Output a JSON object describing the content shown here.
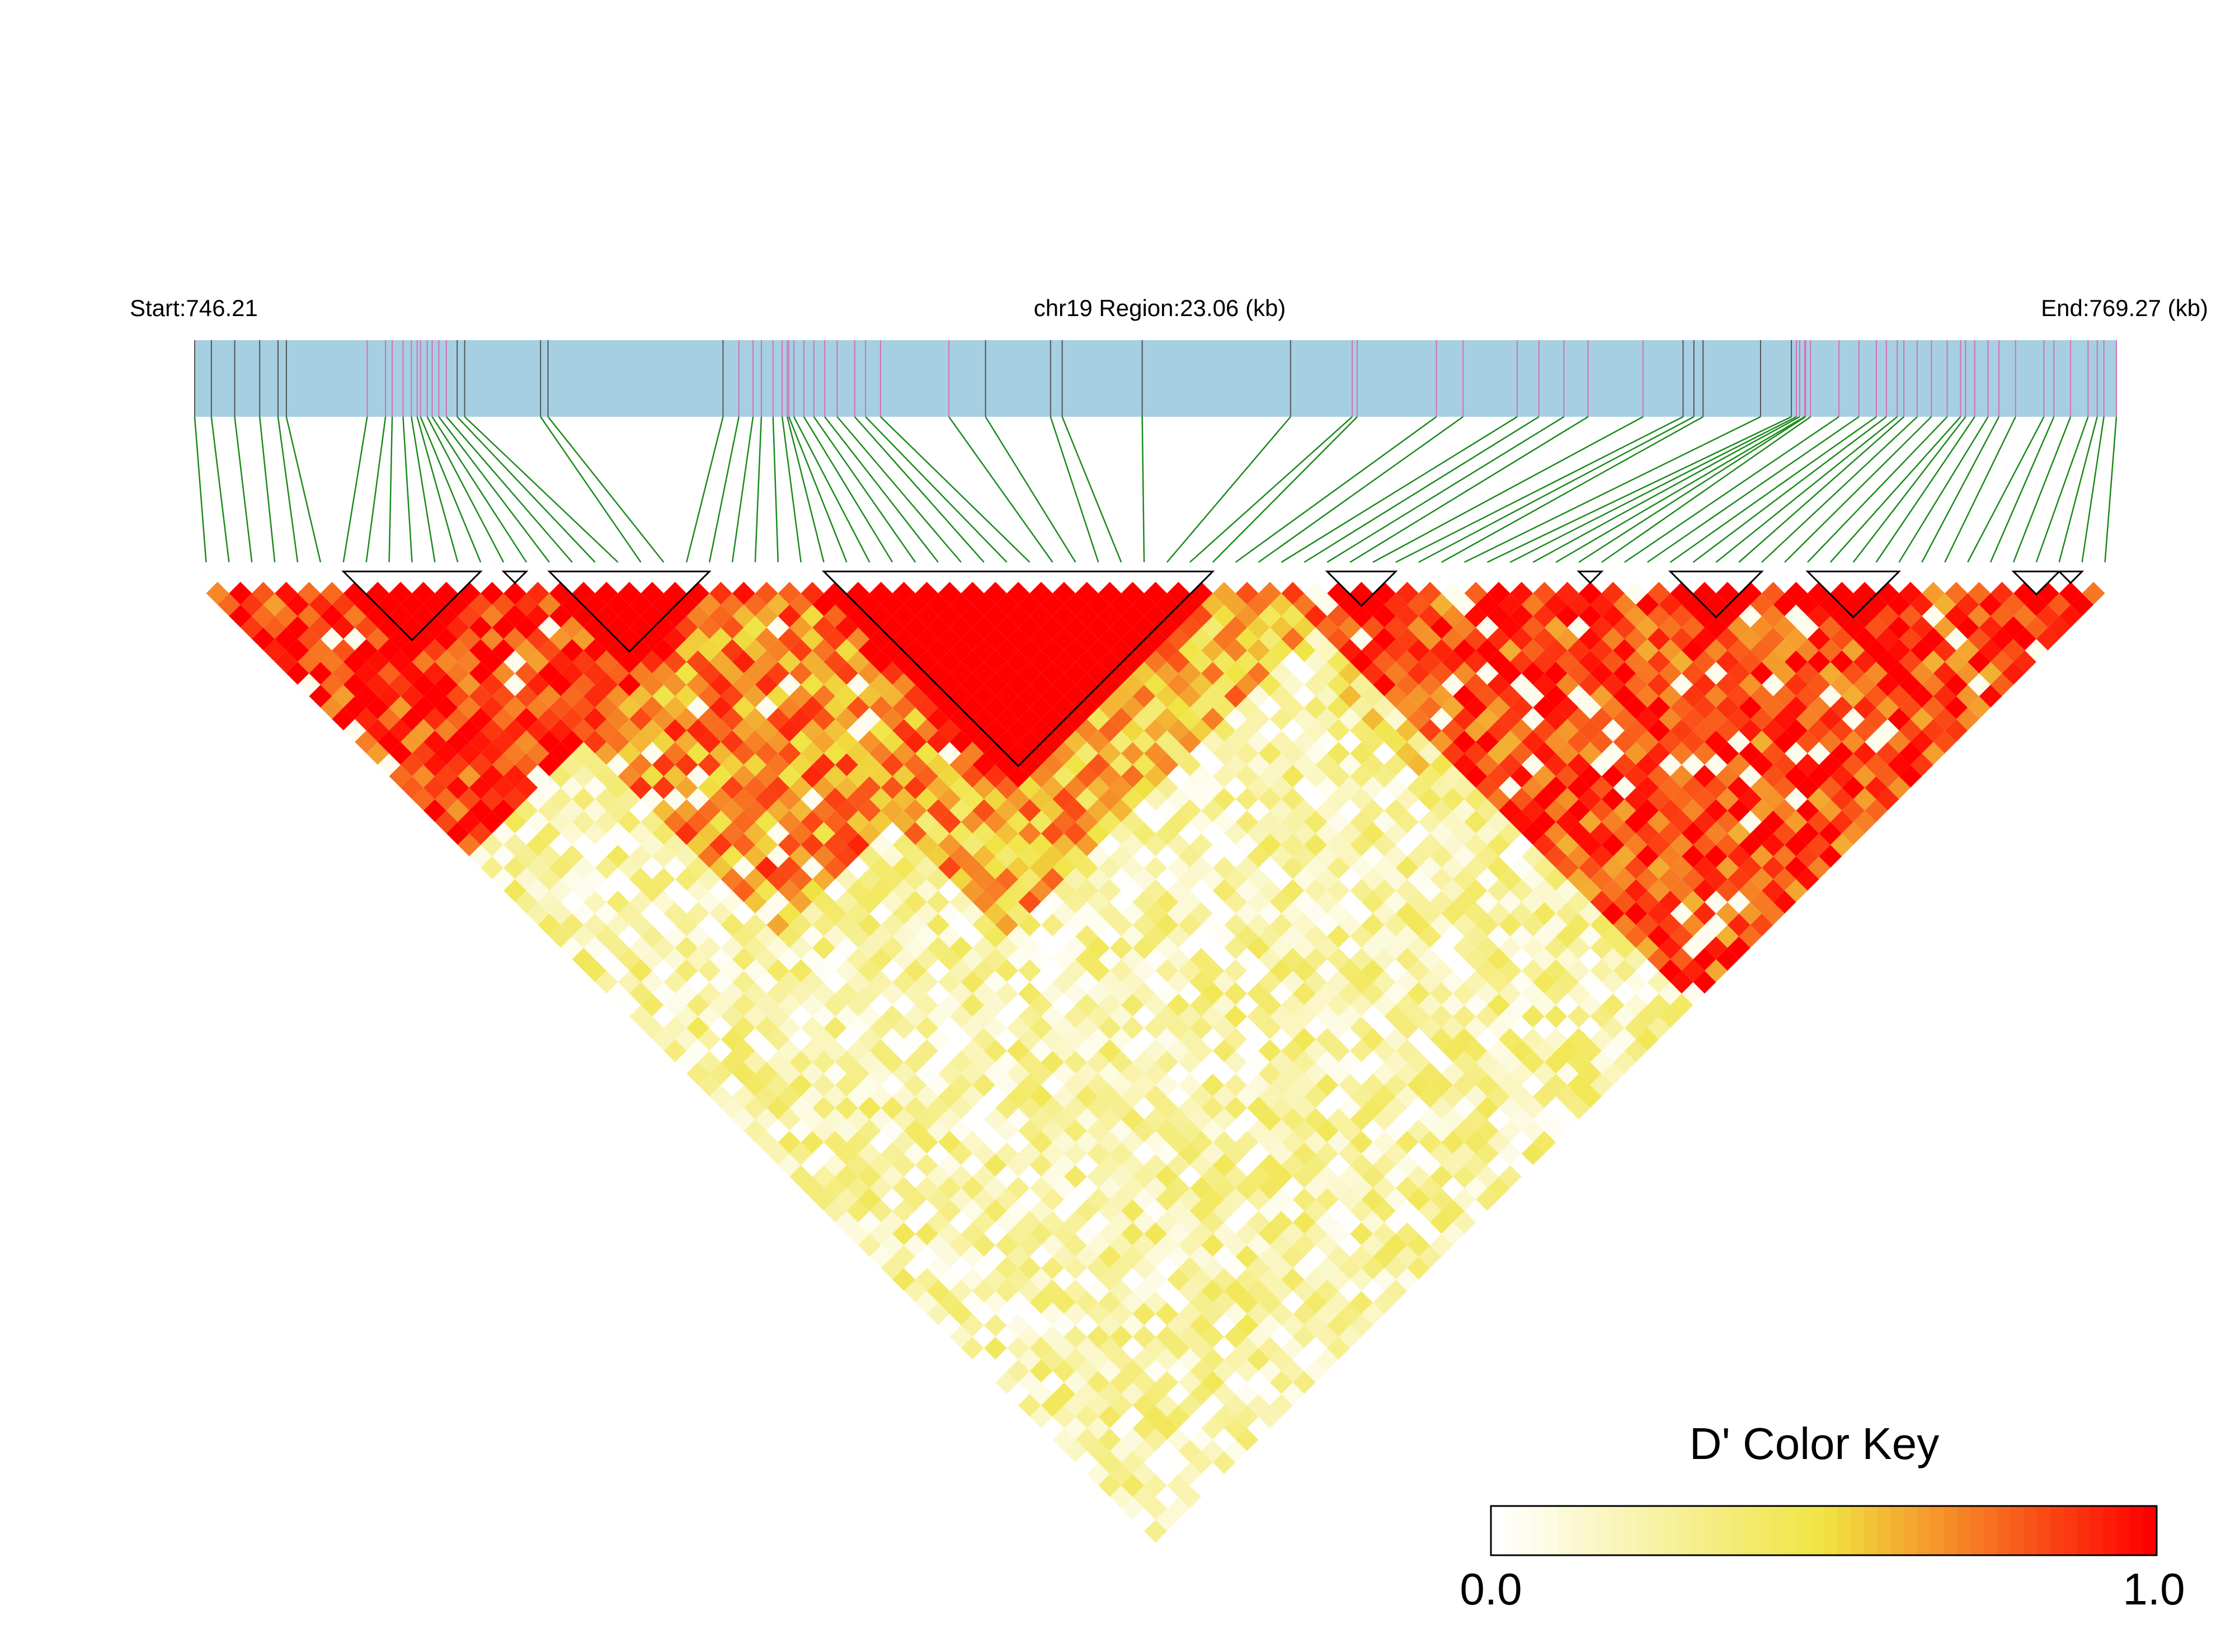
{
  "chart_data": {
    "type": "heatmap",
    "title": "",
    "header": {
      "start_label": "Start:746.21",
      "region_label": "chr19 Region:23.06 (kb)",
      "end_label": "End:769.27 (kb)"
    },
    "region": {
      "chromosome": "chr19",
      "start_kb": 746.21,
      "end_kb": 769.27,
      "length_kb": 23.06
    },
    "snp_count": 84,
    "snp_positions_kb": [
      746.21,
      746.41,
      746.69,
      746.99,
      747.21,
      747.31,
      748.28,
      748.5,
      748.58,
      748.71,
      748.81,
      748.88,
      748.92,
      749.0,
      749.06,
      749.14,
      749.23,
      749.36,
      749.45,
      750.36,
      750.45,
      752.55,
      752.74,
      752.91,
      753.01,
      753.15,
      753.26,
      753.32,
      753.34,
      753.4,
      753.52,
      753.64,
      753.77,
      753.92,
      754.13,
      754.26,
      754.44,
      755.26,
      755.7,
      756.48,
      756.62,
      757.58,
      759.36,
      760.1,
      760.16,
      761.11,
      761.43,
      762.08,
      762.34,
      762.64,
      762.93,
      763.59,
      764.07,
      764.2,
      764.31,
      765.0,
      765.37,
      765.43,
      765.47,
      765.53,
      765.54,
      765.6,
      765.94,
      766.18,
      766.39,
      766.51,
      766.64,
      766.72,
      766.88,
      767.05,
      767.24,
      767.4,
      767.46,
      767.57,
      767.73,
      767.86,
      768.06,
      768.4,
      768.52,
      768.72,
      768.93,
      769.04,
      769.12,
      769.27
    ],
    "snp_marker_colors": [
      "#555555",
      "#555555",
      "#555555",
      "#555555",
      "#555555",
      "#555555",
      "#d36fb8",
      "#d36fb8",
      "#d36fb8",
      "#d36fb8",
      "#d36fb8",
      "#d36fb8",
      "#d36fb8",
      "#d36fb8",
      "#d36fb8",
      "#d36fb8",
      "#d36fb8",
      "#555555",
      "#555555",
      "#555555",
      "#555555",
      "#555555",
      "#d36fb8",
      "#d36fb8",
      "#d36fb8",
      "#d36fb8",
      "#d36fb8",
      "#d36fb8",
      "#d36fb8",
      "#d36fb8",
      "#d36fb8",
      "#d36fb8",
      "#d36fb8",
      "#d36fb8",
      "#d36fb8",
      "#d36fb8",
      "#d36fb8",
      "#d36fb8",
      "#555555",
      "#555555",
      "#555555",
      "#555555",
      "#555555",
      "#d36fb8",
      "#d36fb8",
      "#d36fb8",
      "#d36fb8",
      "#d36fb8",
      "#d36fb8",
      "#d36fb8",
      "#d36fb8",
      "#d36fb8",
      "#555555",
      "#555555",
      "#555555",
      "#555555",
      "#555555",
      "#d36fb8",
      "#d36fb8",
      "#d36fb8",
      "#d36fb8",
      "#d36fb8",
      "#d36fb8",
      "#d36fb8",
      "#d36fb8",
      "#d36fb8",
      "#d36fb8",
      "#d36fb8",
      "#d36fb8",
      "#d36fb8",
      "#d36fb8",
      "#d36fb8",
      "#d36fb8",
      "#d36fb8",
      "#d36fb8",
      "#d36fb8",
      "#d36fb8",
      "#d36fb8",
      "#d36fb8",
      "#d36fb8",
      "#d36fb8",
      "#d36fb8",
      "#d36fb8",
      "#d36fb8"
    ],
    "ld_blocks": [
      {
        "first_snp": 6,
        "last_snp": 12
      },
      {
        "first_snp": 13,
        "last_snp": 14
      },
      {
        "first_snp": 15,
        "last_snp": 22
      },
      {
        "first_snp": 27,
        "last_snp": 44
      },
      {
        "first_snp": 49,
        "last_snp": 52
      },
      {
        "first_snp": 60,
        "last_snp": 61
      },
      {
        "first_snp": 64,
        "last_snp": 68
      },
      {
        "first_snp": 70,
        "last_snp": 74
      },
      {
        "first_snp": 79,
        "last_snp": 81
      },
      {
        "first_snp": 81,
        "last_snp": 82
      }
    ],
    "ld_regions": [
      {
        "first_snp": 0,
        "last_snp": 23,
        "level": 0.9
      },
      {
        "first_snp": 10,
        "last_snp": 40,
        "level": 0.72
      },
      {
        "first_snp": 26,
        "last_snp": 44,
        "level": 0.93
      },
      {
        "first_snp": 20,
        "last_snp": 50,
        "level": 0.6
      },
      {
        "first_snp": 47,
        "last_snp": 83,
        "level": 0.86
      },
      {
        "first_snp": 45,
        "last_snp": 65,
        "level": 0.35
      },
      {
        "first_snp": 30,
        "last_snp": 83,
        "level": 0.18
      },
      {
        "first_snp": 0,
        "last_snp": 83,
        "level": 0.2
      }
    ],
    "color_key": {
      "title": "D' Color Key",
      "min_label": "0.0",
      "max_label": "1.0",
      "min": 0.0,
      "max": 1.0,
      "steps": 50,
      "colors": [
        "#ffffff",
        "#f0e442",
        "#ff0000"
      ]
    },
    "colors": {
      "gene_track": "#a6cfe2",
      "connector": "#1a8a1a",
      "block_outline": "#000000"
    }
  }
}
